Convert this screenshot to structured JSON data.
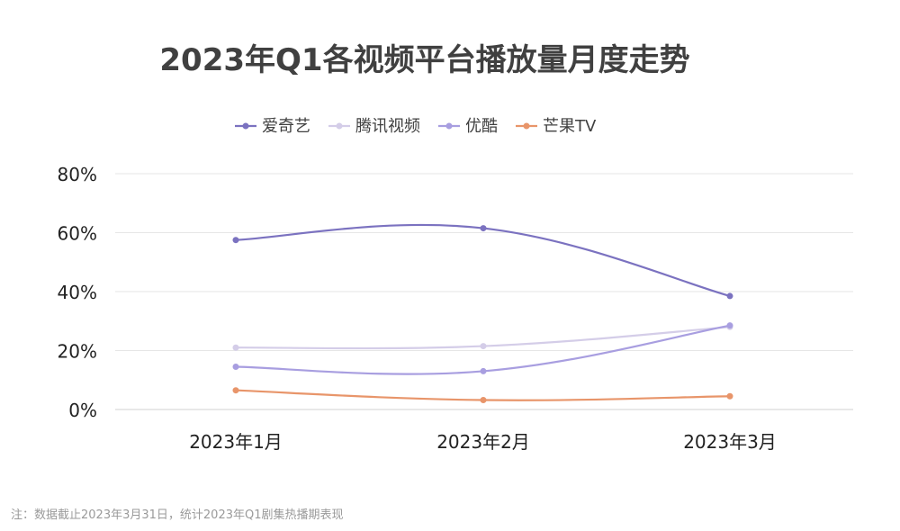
{
  "chart_data": {
    "type": "line",
    "title": "2023年Q1各视频平台播放量月度走势",
    "categories": [
      "2023年1月",
      "2023年2月",
      "2023年3月"
    ],
    "y_ticks": [
      "0%",
      "20%",
      "40%",
      "60%",
      "80%"
    ],
    "ylim": [
      0,
      80
    ],
    "grid": true,
    "legend_position": "top-center",
    "series": [
      {
        "name": "爱奇艺",
        "color": "#7b72c0",
        "values": [
          57.5,
          61.5,
          38.5
        ]
      },
      {
        "name": "腾讯视频",
        "color": "#d4cde8",
        "values": [
          21.0,
          21.5,
          28.0
        ]
      },
      {
        "name": "优酷",
        "color": "#a89ee0",
        "values": [
          14.5,
          13.0,
          28.5
        ]
      },
      {
        "name": "芒果TV",
        "color": "#e8956a",
        "values": [
          6.5,
          3.2,
          4.5
        ]
      }
    ]
  },
  "footnote": "注：数据截止2023年3月31日，统计2023年Q1剧集热播期表现"
}
